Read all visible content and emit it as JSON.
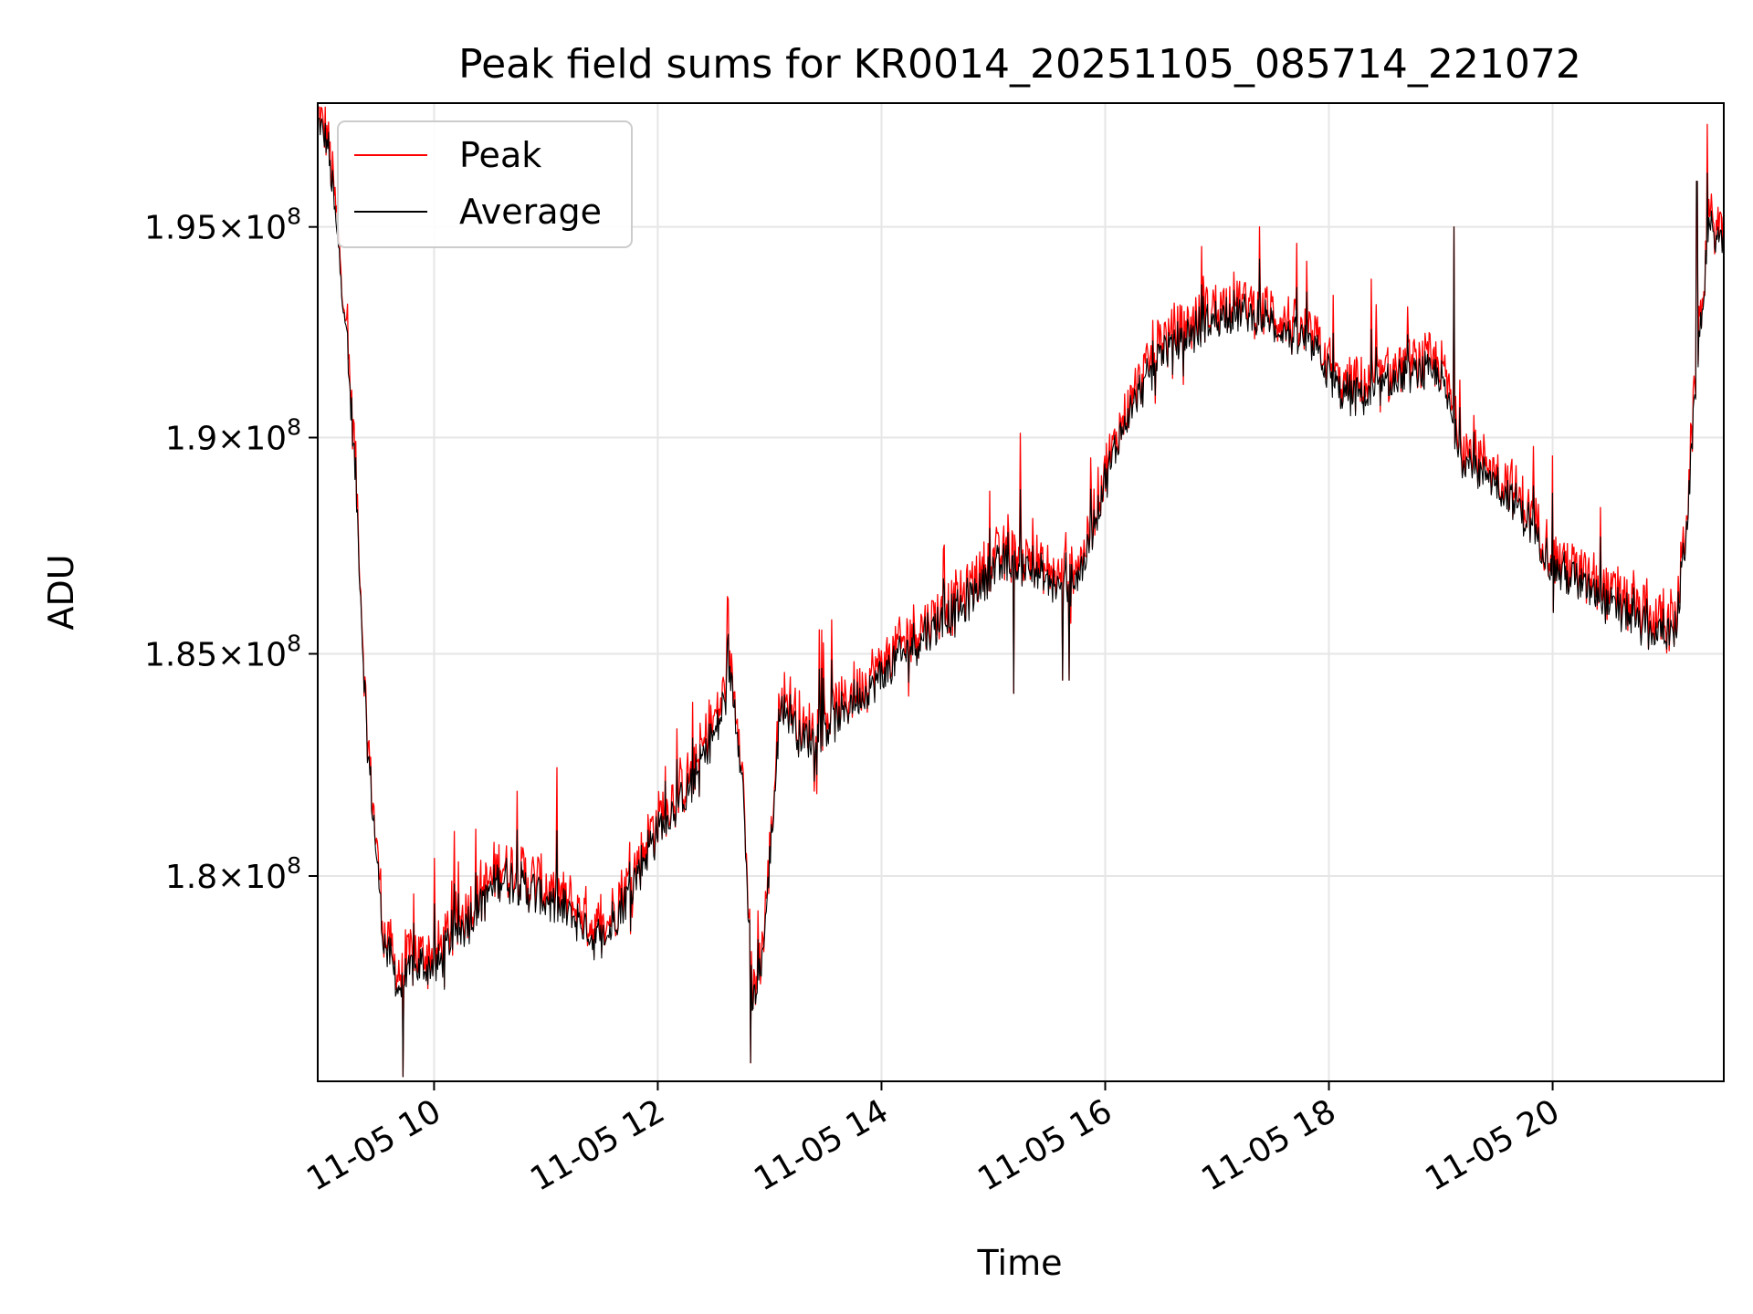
{
  "chart_data": {
    "type": "line",
    "title": "Peak field sums for KR0014_20251105_085714_221072",
    "xlabel": "Time",
    "ylabel": "ADU",
    "x_range_hours": [
      8.96,
      21.53
    ],
    "y_scale": "log",
    "ylim": [
      175500000,
      198000000
    ],
    "grid": true,
    "legend_position": "upper left",
    "x_ticks": [
      {
        "value": 10,
        "label": "11-05 10"
      },
      {
        "value": 12,
        "label": "11-05 12"
      },
      {
        "value": 14,
        "label": "11-05 14"
      },
      {
        "value": 16,
        "label": "11-05 16"
      },
      {
        "value": 18,
        "label": "11-05 18"
      },
      {
        "value": 20,
        "label": "11-05 20"
      }
    ],
    "y_ticks": [
      {
        "value": 180000000,
        "mantissa": "1.8",
        "exponent": "8"
      },
      {
        "value": 185000000,
        "mantissa": "1.85",
        "exponent": "8"
      },
      {
        "value": 190000000,
        "mantissa": "1.9",
        "exponent": "8"
      },
      {
        "value": 195000000,
        "mantissa": "1.95",
        "exponent": "8"
      }
    ],
    "series": [
      {
        "name": "Peak",
        "color": "#ff0000",
        "noise": 0.9,
        "offset": 0.25
      },
      {
        "name": "Average",
        "color": "#000000",
        "noise": 0.6,
        "offset": 0
      }
    ],
    "baseline": {
      "time_hours": [
        8.96,
        9.05,
        9.2,
        9.3,
        9.4,
        9.55,
        9.7,
        9.8,
        10.0,
        10.3,
        10.6,
        11.0,
        11.3,
        11.5,
        11.7,
        12.0,
        12.3,
        12.55,
        12.65,
        12.75,
        12.85,
        12.95,
        13.05,
        13.1,
        13.3,
        13.6,
        14.0,
        14.4,
        14.7,
        15.0,
        15.3,
        15.6,
        15.8,
        16.0,
        16.2,
        16.5,
        16.8,
        17.1,
        17.4,
        17.6,
        17.9,
        18.1,
        18.4,
        18.7,
        19.0,
        19.2,
        19.5,
        19.8,
        20.0,
        20.3,
        20.6,
        20.9,
        21.1,
        21.2,
        21.3,
        21.4,
        21.53
      ],
      "values_millions": [
        197.5,
        197.0,
        193.0,
        189.0,
        183.0,
        178.5,
        177.5,
        178.0,
        178.0,
        179.0,
        180.0,
        179.5,
        179.0,
        178.5,
        179.5,
        181.0,
        182.0,
        183.5,
        184.5,
        182.5,
        177.0,
        178.5,
        182.0,
        184.0,
        183.0,
        183.5,
        184.5,
        185.5,
        186.0,
        187.0,
        187.0,
        186.5,
        187.0,
        189.0,
        190.5,
        192.0,
        192.5,
        193.0,
        192.8,
        192.5,
        192.0,
        191.0,
        191.0,
        191.5,
        191.5,
        189.5,
        189.0,
        188.0,
        187.0,
        186.5,
        186.0,
        185.5,
        185.5,
        188.0,
        192.0,
        195.0,
        194.5
      ]
    },
    "events": [
      {
        "time": 9.72,
        "value_millions": 175.6
      },
      {
        "time": 12.83,
        "value_millions": 175.9
      },
      {
        "time": 15.18,
        "value_millions": 184.1
      },
      {
        "time": 15.62,
        "value_millions": 184.4
      },
      {
        "time": 15.68,
        "value_millions": 184.4
      },
      {
        "time": 19.12,
        "value_millions": 195.0
      },
      {
        "time": 21.29,
        "value_millions": 196.1
      }
    ]
  }
}
